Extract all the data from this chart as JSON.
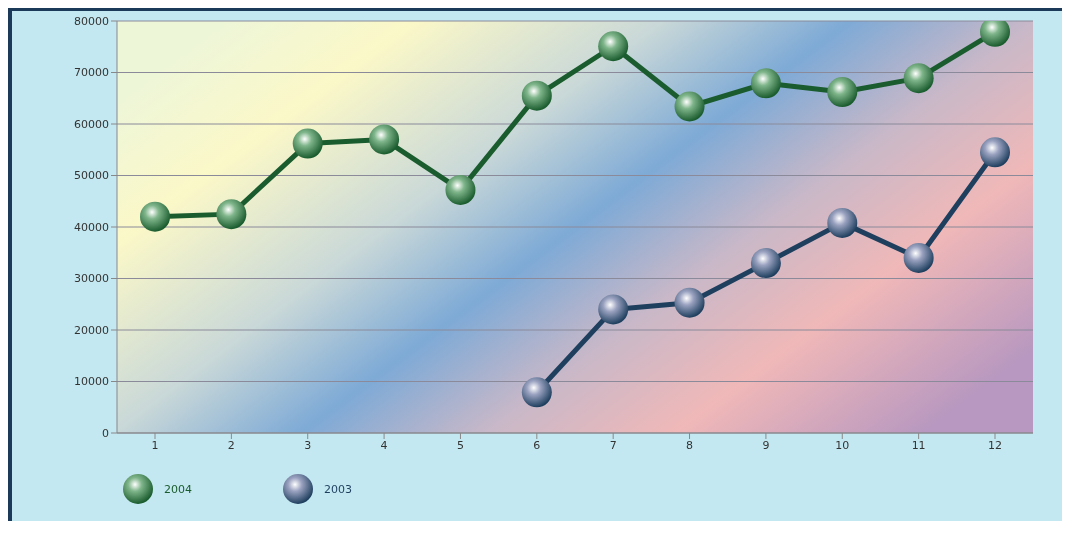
{
  "chart_data": {
    "type": "line",
    "categories": [
      "1",
      "2",
      "3",
      "4",
      "5",
      "6",
      "7",
      "8",
      "9",
      "10",
      "11",
      "12"
    ],
    "series": [
      {
        "name": "2004",
        "color": "#1a5c2e",
        "values": [
          42000,
          42500,
          56200,
          57000,
          47200,
          65500,
          75100,
          63400,
          67900,
          66200,
          68900,
          77900
        ]
      },
      {
        "name": "2003",
        "color": "#1f3f5f",
        "values": [
          null,
          null,
          null,
          null,
          null,
          7900,
          24000,
          25300,
          33000,
          40800,
          34000,
          54500
        ]
      }
    ],
    "ylim": [
      0,
      80000
    ],
    "yticks": [
      0,
      10000,
      20000,
      30000,
      40000,
      50000,
      60000,
      70000,
      80000
    ],
    "grid": "y",
    "legend": "bottom left",
    "marker": "circle",
    "line_style": "solid"
  }
}
